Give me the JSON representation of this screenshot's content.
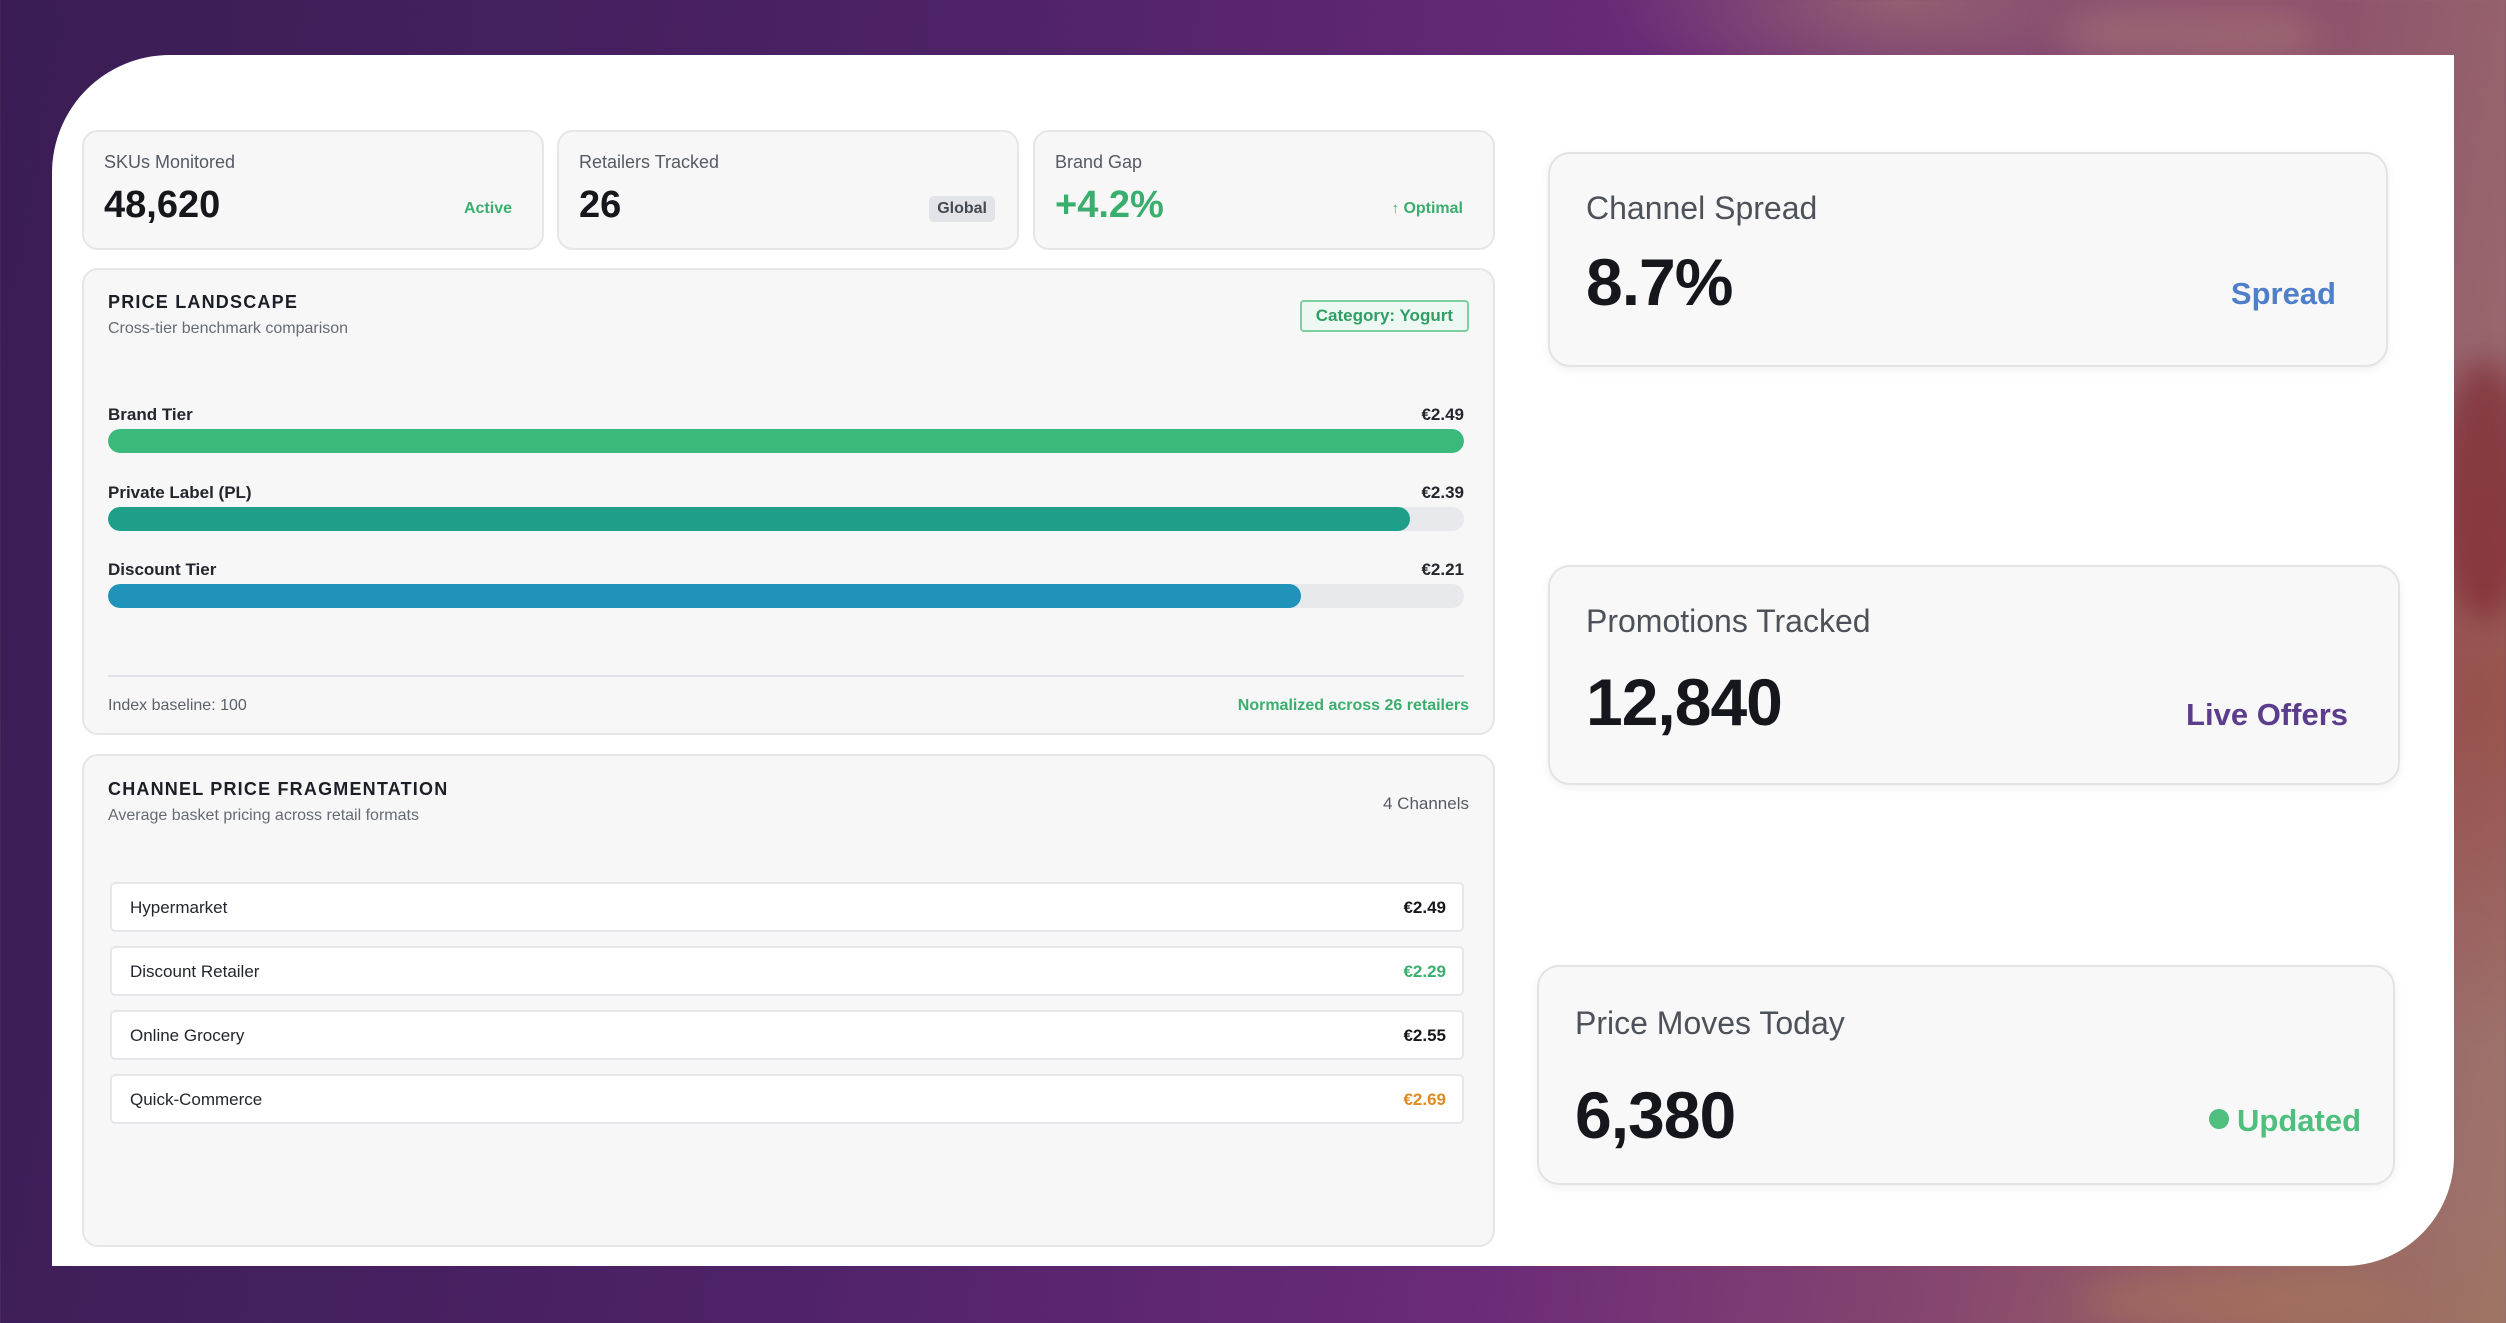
{
  "stats": [
    {
      "label": "SKUs Monitored",
      "value": "48,620",
      "badge": "Active"
    },
    {
      "label": "Retailers Tracked",
      "value": "26",
      "badge": "Global"
    },
    {
      "label": "Brand Gap",
      "value": "+4.2%",
      "badge_icon": "↑",
      "badge": "Optimal"
    }
  ],
  "price_landscape": {
    "title": "PRICE LANDSCAPE",
    "subtitle": "Cross-tier benchmark comparison",
    "category_badge": "Category: Yogurt",
    "tiers": [
      {
        "label": "Brand Tier",
        "price": "€2.49",
        "fill_fraction": 1.0,
        "color": "#3bb97a"
      },
      {
        "label": "Private Label (PL)",
        "price": "€2.39",
        "fill_fraction": 0.96,
        "color": "#1f9e8a"
      },
      {
        "label": "Discount Tier",
        "price": "€2.21",
        "fill_fraction": 0.88,
        "color": "#1f93b8"
      }
    ],
    "footer_left": "Index baseline: 100",
    "footer_right": "Normalized across 26 retailers"
  },
  "channel_fragmentation": {
    "title": "CHANNEL PRICE FRAGMENTATION",
    "subtitle": "Average basket pricing across retail formats",
    "count_label": "4 Channels",
    "channels": [
      {
        "name": "Hypermarket",
        "price": "€2.49",
        "color": "#15171c"
      },
      {
        "name": "Discount Retailer",
        "price": "€2.29",
        "color": "#3aae6e"
      },
      {
        "name": "Online Grocery",
        "price": "€2.55",
        "color": "#15171c"
      },
      {
        "name": "Quick-Commerce",
        "price": "€2.69",
        "color": "#e08a1e"
      }
    ]
  },
  "kpis": {
    "channel_spread": {
      "label": "Channel Spread",
      "value": "8.7%",
      "tag": "Spread",
      "tag_color": "#4f7fc8"
    },
    "promotions": {
      "label": "Promotions Tracked",
      "value": "12,840",
      "tag": "Live Offers",
      "tag_color": "#5b3d8c"
    },
    "price_moves": {
      "label": "Price Moves Today",
      "value": "6,380",
      "tag": "Updated",
      "tag_color": "#4fbf7e"
    }
  }
}
